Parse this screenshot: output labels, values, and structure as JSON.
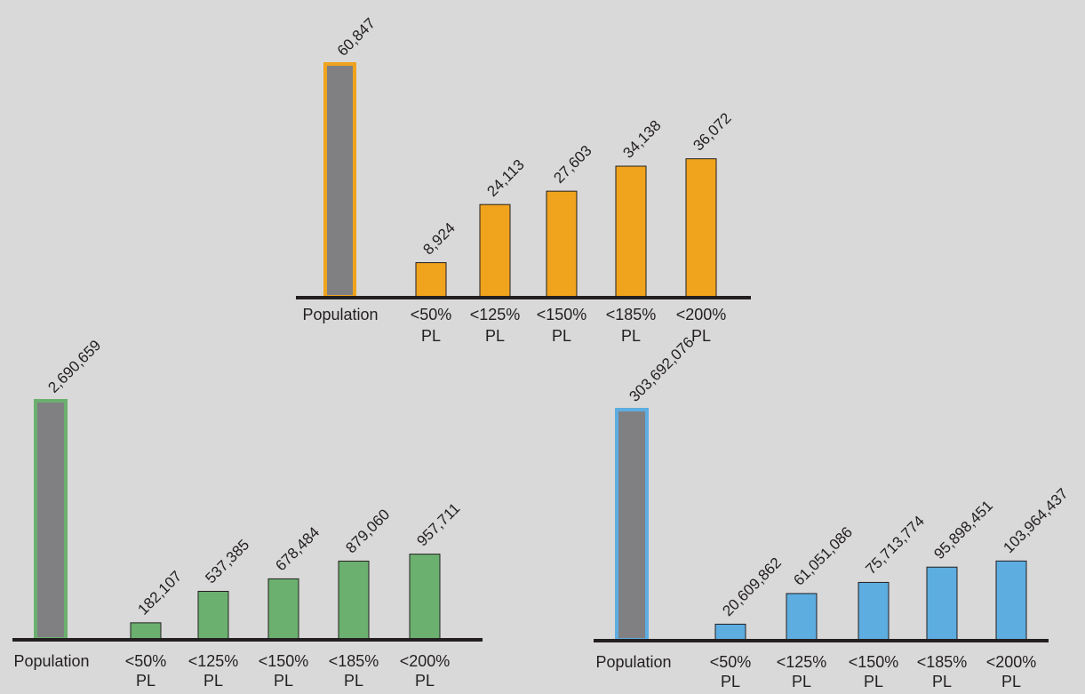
{
  "chart_data": [
    {
      "type": "bar",
      "color": "#f0a31c",
      "population_fill": "#808083",
      "categories": [
        "Population",
        "<50%|PL",
        "<125%|PL",
        "<150%|PL",
        "<185%|PL",
        "<200%|PL"
      ],
      "values": [
        60847,
        8924,
        24113,
        27603,
        34138,
        36072
      ],
      "value_labels": [
        "60,847",
        "8,924",
        "24,113",
        "27,603",
        "34,138",
        "36,072"
      ],
      "ylim": [
        0,
        60847
      ]
    },
    {
      "type": "bar",
      "color": "#6bb06f",
      "population_fill": "#808083",
      "categories": [
        "Population",
        "<50%|PL",
        "<125%|PL",
        "<150%|PL",
        "<185%|PL",
        "<200%|PL"
      ],
      "values": [
        2690659,
        182107,
        537385,
        678484,
        879060,
        957711
      ],
      "value_labels": [
        "2,690,659",
        "182,107",
        "537,385",
        "678,484",
        "879,060",
        "957,711"
      ],
      "ylim": [
        0,
        2690659
      ]
    },
    {
      "type": "bar",
      "color": "#5dade0",
      "population_fill": "#808083",
      "categories": [
        "Population",
        "<50%|PL",
        "<125%|PL",
        "<150%|PL",
        "<185%|PL",
        "<200%|PL"
      ],
      "values": [
        303692076,
        20609862,
        61051086,
        75713774,
        95898451,
        103964437
      ],
      "value_labels": [
        "303,692,076",
        "20,609,862",
        "61,051,086",
        "75,713,774",
        "95,898,451",
        "103,964,437"
      ],
      "ylim": [
        0,
        303692076
      ]
    }
  ]
}
